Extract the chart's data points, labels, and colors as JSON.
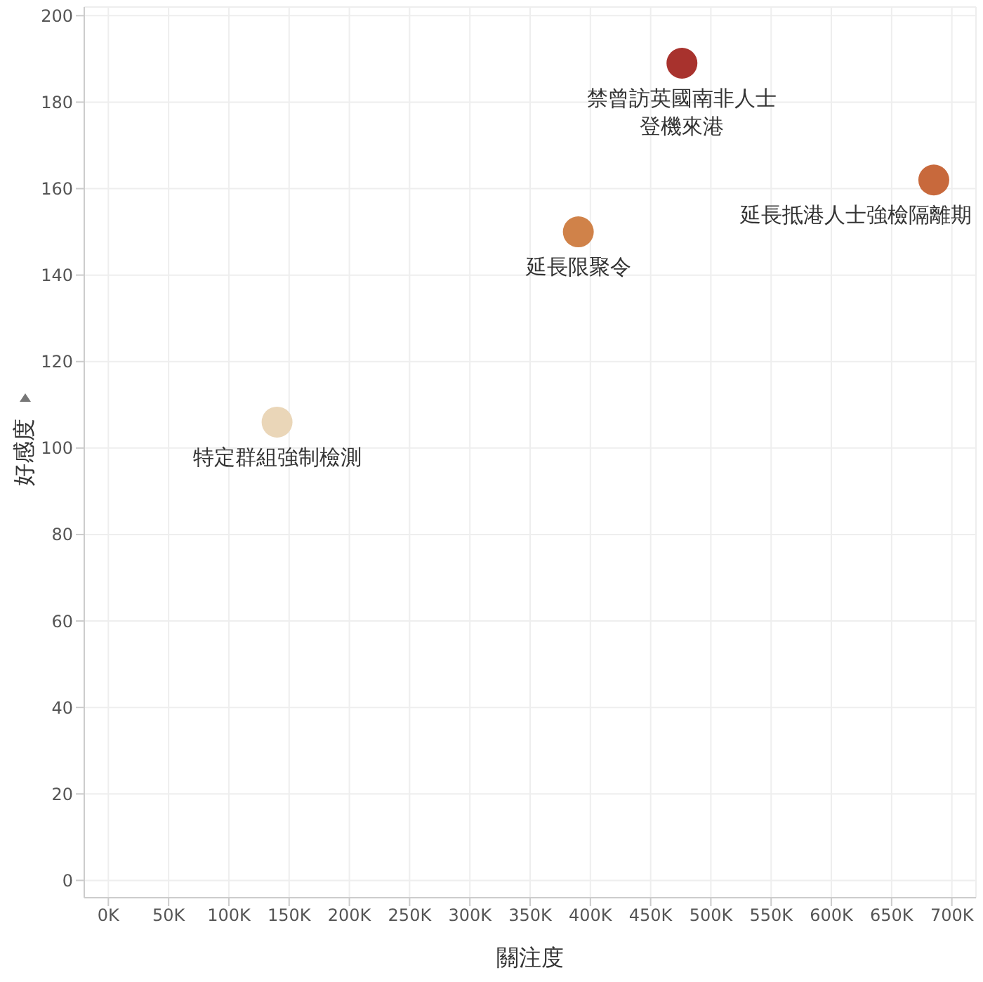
{
  "chart_data": {
    "type": "scatter",
    "xlabel": "關注度",
    "ylabel": "好感度",
    "x": [
      476000,
      685000,
      390000,
      140000
    ],
    "values": [
      189,
      162,
      150,
      106
    ],
    "colors": [
      "#a8322d",
      "#c8693c",
      "#d08249",
      "#ead6b8"
    ],
    "marker": "circle",
    "grid": true,
    "xlim": [
      -20000,
      720000
    ],
    "xticks": [
      {
        "value": 0,
        "label": "0K"
      },
      {
        "value": 50000,
        "label": "50K"
      },
      {
        "value": 100000,
        "label": "100K"
      },
      {
        "value": 150000,
        "label": "150K"
      },
      {
        "value": 200000,
        "label": "200K"
      },
      {
        "value": 250000,
        "label": "250K"
      },
      {
        "value": 300000,
        "label": "300K"
      },
      {
        "value": 350000,
        "label": "350K"
      },
      {
        "value": 400000,
        "label": "400K"
      },
      {
        "value": 450000,
        "label": "450K"
      },
      {
        "value": 500000,
        "label": "500K"
      },
      {
        "value": 550000,
        "label": "550K"
      },
      {
        "value": 600000,
        "label": "600K"
      },
      {
        "value": 650000,
        "label": "650K"
      },
      {
        "value": 700000,
        "label": "700K"
      }
    ],
    "ylim": [
      -4,
      202
    ],
    "yticks": [
      0,
      20,
      40,
      60,
      80,
      100,
      120,
      140,
      160,
      180,
      200
    ],
    "annotations": [
      {
        "text": "禁曾訪英國南非人士登機來港",
        "x": 476000,
        "y": 189
      },
      {
        "text": "延長抵港人士強檢隔離期",
        "x": 685000,
        "y": 162
      },
      {
        "text": "延長限聚令",
        "x": 390000,
        "y": 150
      },
      {
        "text": "特定群組強制檢測",
        "x": 140000,
        "y": 106
      }
    ]
  }
}
